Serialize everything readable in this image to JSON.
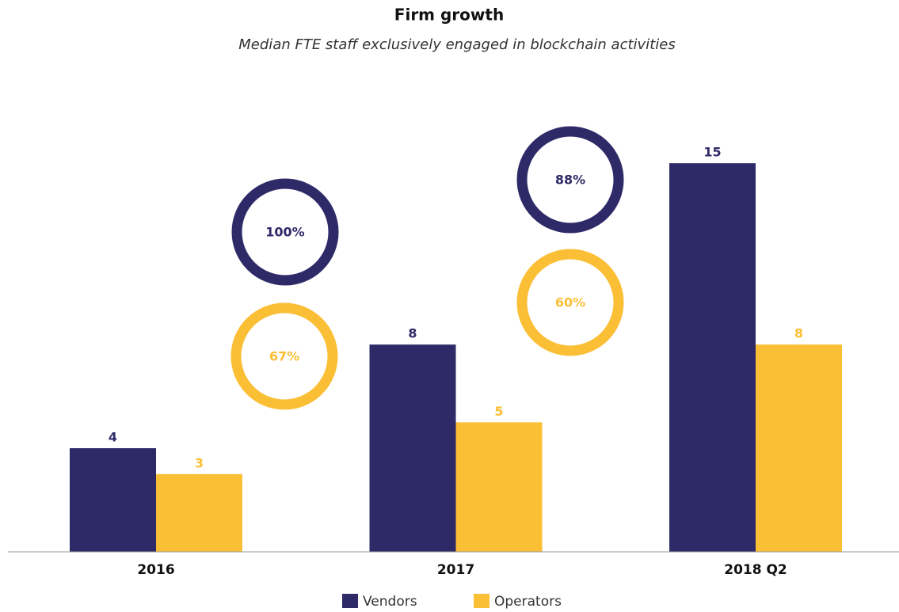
{
  "chart_data": {
    "type": "bar",
    "title": "Firm growth",
    "subtitle": "Median FTE staff exclusively engaged in blockchain activities",
    "categories": [
      "2016",
      "2017",
      "2018 Q2"
    ],
    "series": [
      {
        "name": "Vendors",
        "color": "#2e2a67",
        "values": [
          4,
          8,
          15
        ]
      },
      {
        "name": "Operators",
        "color": "#fbbf36",
        "values": [
          3,
          5,
          8
        ]
      }
    ],
    "ylim": [
      0,
      18
    ],
    "annotations": [
      {
        "value": 100,
        "label": "100%",
        "color": "#2e2a67"
      },
      {
        "value": 67,
        "label": "67%",
        "color": "#fbbf36"
      },
      {
        "value": 88,
        "label": "88%",
        "color": "#2e2a67"
      },
      {
        "value": 60,
        "label": "60%",
        "color": "#fbbf36"
      }
    ]
  }
}
